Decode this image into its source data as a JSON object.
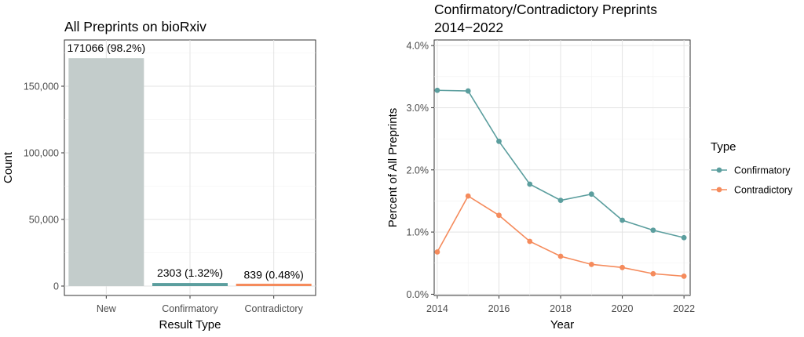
{
  "chart_data": [
    {
      "type": "bar",
      "title": "All Preprints on bioRxiv",
      "xlabel": "Result Type",
      "ylabel": "Count",
      "ylim": [
        0,
        180000
      ],
      "yticks": [
        0,
        50000,
        100000,
        150000
      ],
      "ytick_labels": [
        "0",
        "50,000",
        "100,000",
        "150,000"
      ],
      "categories": [
        "New",
        "Confirmatory",
        "Contradictory"
      ],
      "values": [
        171066,
        2303,
        839
      ],
      "data_labels": [
        "171066 (98.2%)",
        "2303 (1.32%)",
        "839 (0.48%)"
      ],
      "colors": [
        "#c3cccb",
        "#5b9e9e",
        "#f58b5c"
      ],
      "grid": true
    },
    {
      "type": "line",
      "title_lines": [
        "Confirmatory/Contradictory Preprints",
        "2014−2022"
      ],
      "xlabel": "Year",
      "ylabel": "Percent of All Preprints",
      "xlim": [
        2013.9,
        2022.2
      ],
      "ylim": [
        -0.0002,
        0.0409
      ],
      "xticks": [
        2014,
        2016,
        2018,
        2020,
        2022
      ],
      "yticks": [
        0,
        0.01,
        0.02,
        0.03,
        0.04
      ],
      "ytick_labels": [
        "0.0%",
        "1.0%",
        "2.0%",
        "3.0%",
        "4.0%"
      ],
      "x": [
        2014,
        2015,
        2016,
        2017,
        2018,
        2019,
        2020,
        2021,
        2022
      ],
      "series": [
        {
          "name": "Confirmatory",
          "color": "#5b9e9e",
          "values": [
            0.0328,
            0.0327,
            0.0246,
            0.0177,
            0.0151,
            0.0161,
            0.0119,
            0.0103,
            0.0091
          ]
        },
        {
          "name": "Contradictory",
          "color": "#f58b5c",
          "values": [
            0.0068,
            0.0158,
            0.0127,
            0.0085,
            0.0061,
            0.0048,
            0.0043,
            0.0033,
            0.0029
          ]
        }
      ],
      "legend_title": "Type",
      "legend_position": "right",
      "grid": true
    }
  ]
}
